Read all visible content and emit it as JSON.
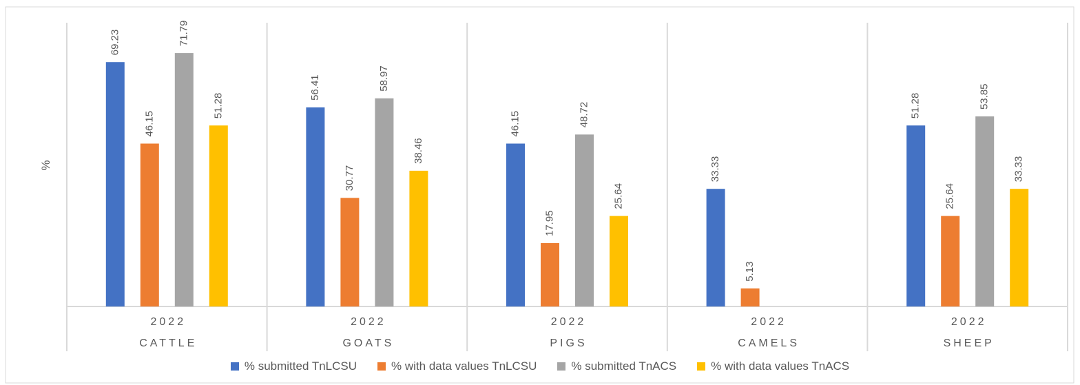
{
  "chart_data": {
    "type": "bar",
    "y_label": "%",
    "categories": [
      "CATTLE",
      "GOATS",
      "PIGS",
      "CAMELS",
      "SHEEP"
    ],
    "category_years": [
      "2022",
      "2022",
      "2022",
      "2022",
      "2022"
    ],
    "series": [
      {
        "name": "% submitted TnLCSU",
        "color": "#4472c4",
        "values": [
          69.23,
          56.41,
          46.15,
          33.33,
          51.28
        ]
      },
      {
        "name": "% with data values TnLCSU",
        "color": "#ed7d31",
        "values": [
          46.15,
          30.77,
          17.95,
          5.13,
          25.64
        ]
      },
      {
        "name": "% submitted TnACS",
        "color": "#a5a5a5",
        "values": [
          71.79,
          58.97,
          48.72,
          null,
          53.85
        ]
      },
      {
        "name": "% with data values TnACS",
        "color": "#ffc000",
        "values": [
          51.28,
          38.46,
          25.64,
          null,
          33.33
        ]
      }
    ],
    "ylim": [
      0,
      80
    ],
    "legend": "bottom"
  }
}
